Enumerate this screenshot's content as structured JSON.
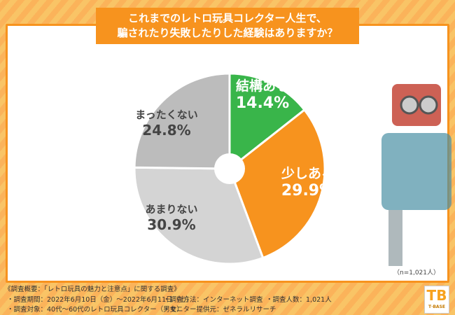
{
  "title_lines": [
    "これまでのレトロ玩具コレクター人生で、",
    "騙されたり失敗したりした経験はありますか？"
  ],
  "chart_data": {
    "type": "pie",
    "title": "これまでのレトロ玩具コレクター人生で、騙されたり失敗したりした経験はありますか？",
    "categories": [
      "結構ある",
      "少しある",
      "あまりない",
      "まったくない"
    ],
    "values": [
      14.4,
      29.9,
      30.9,
      24.8
    ],
    "value_labels": [
      "14.4%",
      "29.9%",
      "30.9%",
      "24.8%"
    ],
    "colors": [
      "#39b54a",
      "#f7931e",
      "#d4d4d4",
      "#bcbcbc"
    ],
    "label_colors": [
      "#ffffff",
      "#ffffff",
      "#444444",
      "#444444"
    ],
    "start": "top",
    "direction": "clockwise",
    "donut_hole": true
  },
  "sample": "（n=1,021人）",
  "footer": {
    "heading": "《調査概要：「レトロ玩具の魅力と注意点」に関する調査》",
    "period": "・調査期間：2022年6月10日（金）～2022年6月11日（土）",
    "method": "・調査方法：インターネット調査",
    "count": "・調査人数：1,021人",
    "target": "・調査対象：40代～60代のレトロ玩具コレクター（男女）",
    "provider": "・モニター提供元：ゼネラルリサーチ"
  },
  "logo": {
    "mark": "TB",
    "text": "T·BASE"
  }
}
